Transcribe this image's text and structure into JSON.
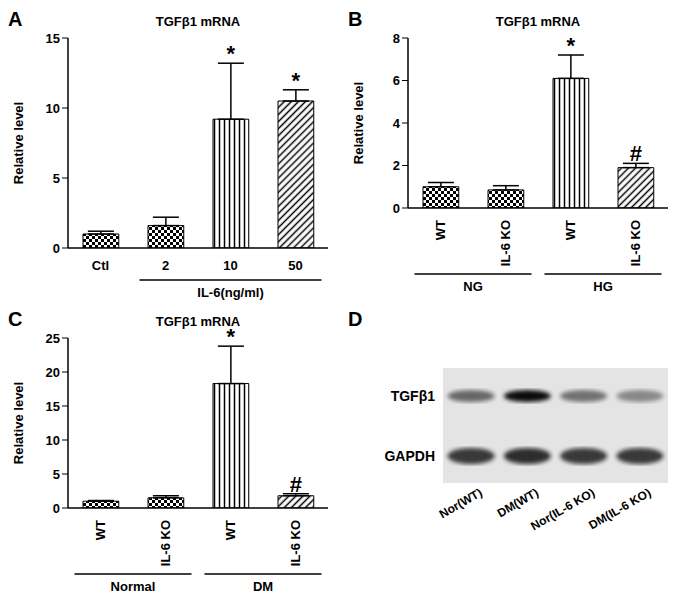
{
  "chart_data": [
    {
      "label": "A",
      "type": "bar",
      "title": "TGFβ1 mRNA",
      "ylabel": "Relative level",
      "categories": [
        "Ctl",
        "2",
        "10",
        "50"
      ],
      "values": [
        1.0,
        1.6,
        9.2,
        10.5
      ],
      "errors": [
        0.2,
        0.6,
        4.0,
        0.8
      ],
      "significance": [
        null,
        null,
        "*",
        "*"
      ],
      "groups": [
        {
          "label": "IL-6(ng/ml)",
          "from": 1,
          "to": 3
        }
      ],
      "ylim": [
        0,
        15
      ],
      "yticks": [
        0,
        5,
        10,
        15
      ],
      "color": "#000000"
    },
    {
      "label": "B",
      "type": "bar",
      "title": "TGFβ1 mRNA",
      "ylabel": "Relative level",
      "categories": [
        "WT",
        "IL-6 KO",
        "WT",
        "IL-6 KO"
      ],
      "values": [
        1.0,
        0.85,
        6.1,
        1.9
      ],
      "errors": [
        0.2,
        0.2,
        1.1,
        0.2
      ],
      "significance": [
        null,
        null,
        "*",
        "#"
      ],
      "groups": [
        {
          "label": "NG",
          "from": 0,
          "to": 1
        },
        {
          "label": "HG",
          "from": 2,
          "to": 3
        }
      ],
      "ylim": [
        0,
        8
      ],
      "yticks": [
        0,
        2,
        4,
        6,
        8
      ],
      "color": "#000000"
    },
    {
      "label": "C",
      "type": "bar",
      "title": "TGFβ1 mRNA",
      "ylabel": "Relative level",
      "categories": [
        "WT",
        "IL-6 KO",
        "WT",
        "IL-6 KO"
      ],
      "values": [
        1.0,
        1.5,
        18.3,
        1.8
      ],
      "errors": [
        0.1,
        0.3,
        5.5,
        0.3
      ],
      "significance": [
        null,
        null,
        "*",
        "#"
      ],
      "groups": [
        {
          "label": "Normal",
          "from": 0,
          "to": 1
        },
        {
          "label": "DM",
          "from": 2,
          "to": 3
        }
      ],
      "ylim": [
        0,
        25
      ],
      "yticks": [
        0,
        5,
        10,
        15,
        20,
        25
      ],
      "color": "#000000"
    }
  ],
  "blot": {
    "label": "D",
    "rows": [
      "TGFβ1",
      "GAPDH"
    ],
    "lanes": [
      "Nor(WT)",
      "DM(WT)",
      "Nor(IL-6 KO)",
      "DM(IL-6 KO)"
    ],
    "band_intensity": [
      [
        0.55,
        0.95,
        0.5,
        0.4
      ],
      [
        0.75,
        0.8,
        0.75,
        0.75
      ]
    ]
  }
}
